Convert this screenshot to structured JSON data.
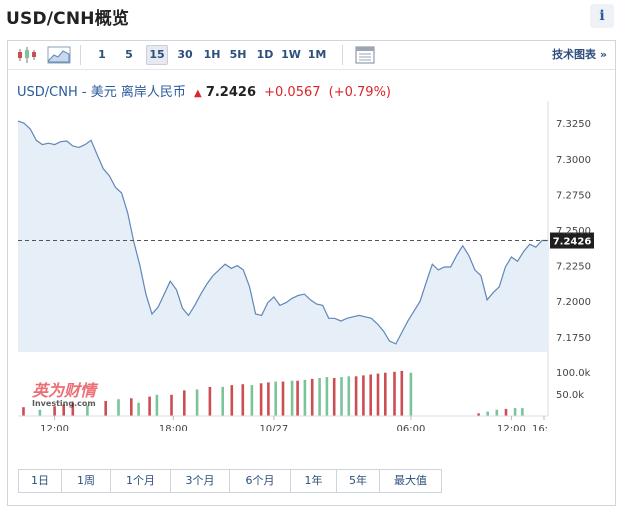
{
  "page": {
    "title": "USD/CNH概览",
    "info_icon": "i"
  },
  "toolbar": {
    "intervals": [
      "1",
      "5",
      "15",
      "30",
      "1H",
      "5H",
      "1D",
      "1W",
      "1M"
    ],
    "active_interval": "15",
    "tech_chart_label": "技术图表 »"
  },
  "quote": {
    "symbol": "USD/CNH",
    "separator": " - ",
    "name": "美元 离岸人民币",
    "price": "7.2426",
    "change": "+0.0567",
    "change_pct": "(+0.79%)"
  },
  "watermark": {
    "brand_cn": "英为财情",
    "brand_en": "Investing.com"
  },
  "ranges": [
    "1日",
    "1周",
    "1个月",
    "3个月",
    "6个月",
    "1年",
    "5年",
    "最大值"
  ],
  "chart_data": {
    "type": "area",
    "y_ticks": [
      "7.3250",
      "7.3000",
      "7.2750",
      "7.2500",
      "7.2250",
      "7.2000",
      "7.1750"
    ],
    "ylim": [
      7.165,
      7.335
    ],
    "current_price": 7.2426,
    "current_label": "7.2426",
    "x_ticks": [
      "12:00",
      "18:00",
      "10/27",
      "06:00",
      "12:00",
      "16:"
    ],
    "price_series": {
      "x": [
        0,
        0.33,
        0.67,
        1.0,
        1.33,
        1.67,
        2.0,
        2.33,
        2.67,
        3.0,
        3.33,
        3.67,
        4.0,
        4.33,
        4.67,
        5.0,
        5.33,
        5.67,
        6.0,
        6.33,
        6.67,
        7.0,
        7.33,
        7.67,
        8.0,
        8.33,
        8.67,
        9.0,
        9.33,
        9.67,
        10.0,
        10.33,
        10.67,
        11.0,
        11.33,
        11.67,
        12.0,
        12.33,
        12.67,
        13.0,
        13.33,
        13.67,
        14.0,
        14.33,
        14.67,
        15.0,
        15.33,
        15.67,
        16.0,
        16.33,
        16.67,
        17.0,
        17.33,
        17.67,
        18.0,
        18.33,
        18.67,
        19.0,
        19.33,
        19.67,
        20.0,
        20.33,
        20.67,
        21.0,
        21.33,
        21.67,
        22.0,
        22.33,
        22.67,
        23.0,
        23.33,
        23.67,
        24.0,
        24.33,
        24.67,
        25.0,
        25.33,
        25.67,
        26.0,
        26.33,
        26.67,
        27.0,
        27.33,
        27.67,
        28.0,
        28.33,
        28.67,
        29.0
      ],
      "y": [
        7.3265,
        7.325,
        7.321,
        7.313,
        7.31,
        7.311,
        7.31,
        7.312,
        7.3125,
        7.309,
        7.308,
        7.31,
        7.313,
        7.303,
        7.293,
        7.288,
        7.28,
        7.276,
        7.262,
        7.242,
        7.225,
        7.205,
        7.191,
        7.196,
        7.205,
        7.214,
        7.208,
        7.195,
        7.19,
        7.197,
        7.205,
        7.212,
        7.218,
        7.222,
        7.226,
        7.223,
        7.225,
        7.222,
        7.21,
        7.191,
        7.19,
        7.199,
        7.203,
        7.197,
        7.199,
        7.202,
        7.204,
        7.205,
        7.201,
        7.198,
        7.197,
        7.188,
        7.188,
        7.186,
        7.188,
        7.189,
        7.19,
        7.189,
        7.188,
        7.184,
        7.179,
        7.172,
        7.17,
        7.178,
        7.186,
        7.193,
        7.2,
        7.213,
        7.226,
        7.222,
        7.224,
        7.224,
        7.232,
        7.239,
        7.232,
        7.222,
        7.218,
        7.201,
        7.206,
        7.21,
        7.224,
        7.231,
        7.228,
        7.235,
        7.24,
        7.238,
        7.2426,
        7.2426
      ]
    },
    "volume": {
      "y_ticks": [
        "100.0k",
        "50.0k"
      ],
      "ylim": [
        0,
        120000
      ],
      "bars": [
        {
          "t": 0.3,
          "v": 20000,
          "dir": "down"
        },
        {
          "t": 1.2,
          "v": 14000,
          "dir": "up"
        },
        {
          "t": 2.0,
          "v": 22000,
          "dir": "down"
        },
        {
          "t": 2.5,
          "v": 26000,
          "dir": "down"
        },
        {
          "t": 3.0,
          "v": 30000,
          "dir": "down"
        },
        {
          "t": 3.8,
          "v": 24000,
          "dir": "up"
        },
        {
          "t": 4.8,
          "v": 34000,
          "dir": "down"
        },
        {
          "t": 5.5,
          "v": 38000,
          "dir": "up"
        },
        {
          "t": 6.2,
          "v": 40000,
          "dir": "down"
        },
        {
          "t": 6.6,
          "v": 30000,
          "dir": "up"
        },
        {
          "t": 7.2,
          "v": 44000,
          "dir": "down"
        },
        {
          "t": 7.6,
          "v": 48000,
          "dir": "up"
        },
        {
          "t": 8.4,
          "v": 48000,
          "dir": "down"
        },
        {
          "t": 9.1,
          "v": 58000,
          "dir": "down"
        },
        {
          "t": 9.8,
          "v": 60000,
          "dir": "up"
        },
        {
          "t": 10.5,
          "v": 66000,
          "dir": "down"
        },
        {
          "t": 11.2,
          "v": 66000,
          "dir": "up"
        },
        {
          "t": 11.7,
          "v": 70000,
          "dir": "down"
        },
        {
          "t": 12.3,
          "v": 72000,
          "dir": "down"
        },
        {
          "t": 12.8,
          "v": 70000,
          "dir": "up"
        },
        {
          "t": 13.3,
          "v": 74000,
          "dir": "down"
        },
        {
          "t": 13.7,
          "v": 76000,
          "dir": "down"
        },
        {
          "t": 14.1,
          "v": 78000,
          "dir": "up"
        },
        {
          "t": 14.5,
          "v": 78000,
          "dir": "down"
        },
        {
          "t": 15.0,
          "v": 80000,
          "dir": "up"
        },
        {
          "t": 15.3,
          "v": 80000,
          "dir": "down"
        },
        {
          "t": 15.7,
          "v": 82000,
          "dir": "up"
        },
        {
          "t": 16.1,
          "v": 84000,
          "dir": "down"
        },
        {
          "t": 16.5,
          "v": 86000,
          "dir": "up"
        },
        {
          "t": 16.9,
          "v": 88000,
          "dir": "up"
        },
        {
          "t": 17.3,
          "v": 86000,
          "dir": "down"
        },
        {
          "t": 17.7,
          "v": 88000,
          "dir": "up"
        },
        {
          "t": 18.1,
          "v": 90000,
          "dir": "up"
        },
        {
          "t": 18.5,
          "v": 90000,
          "dir": "down"
        },
        {
          "t": 18.9,
          "v": 92000,
          "dir": "down"
        },
        {
          "t": 19.3,
          "v": 94000,
          "dir": "down"
        },
        {
          "t": 19.7,
          "v": 96000,
          "dir": "down"
        },
        {
          "t": 20.1,
          "v": 98000,
          "dir": "down"
        },
        {
          "t": 20.6,
          "v": 100000,
          "dir": "down"
        },
        {
          "t": 21.0,
          "v": 102000,
          "dir": "down"
        },
        {
          "t": 21.5,
          "v": 98000,
          "dir": "up"
        },
        {
          "t": 25.2,
          "v": 6000,
          "dir": "down"
        },
        {
          "t": 25.7,
          "v": 10000,
          "dir": "up"
        },
        {
          "t": 26.2,
          "v": 14000,
          "dir": "up"
        },
        {
          "t": 26.7,
          "v": 16000,
          "dir": "down"
        },
        {
          "t": 27.2,
          "v": 18000,
          "dir": "up"
        },
        {
          "t": 27.6,
          "v": 18000,
          "dir": "up"
        }
      ]
    },
    "colors": {
      "line": "#5f87b8",
      "fill": "#e6eef7",
      "up": "#7bc49a",
      "down": "#cc4d52",
      "label_bg": "#1f1f1f"
    }
  }
}
